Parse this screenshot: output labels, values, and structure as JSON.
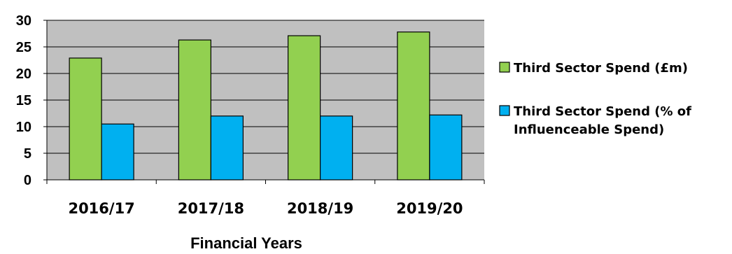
{
  "chart_data": {
    "type": "bar",
    "categories": [
      "2016/17",
      "2017/18",
      "2018/19",
      "2019/20"
    ],
    "series": [
      {
        "name": "Third Sector Spend (£m)",
        "values": [
          22.9,
          26.3,
          27.1,
          27.8
        ],
        "color": "#92D050"
      },
      {
        "name": "Third Sector Spend (% of Influenceable Spend)",
        "name_lines": [
          "Third Sector Spend (% of",
          "Influenceable Spend)"
        ],
        "values": [
          10.5,
          12.0,
          12.0,
          12.2
        ],
        "color": "#00B0F0"
      }
    ],
    "title": "",
    "xlabel": "Financial Years",
    "ylabel": "",
    "ylim": [
      0,
      30
    ],
    "yticks": [
      0,
      5,
      10,
      15,
      20,
      25,
      30
    ],
    "grid": true,
    "plot_background": "#C0C0C0",
    "legend_position": "right"
  }
}
